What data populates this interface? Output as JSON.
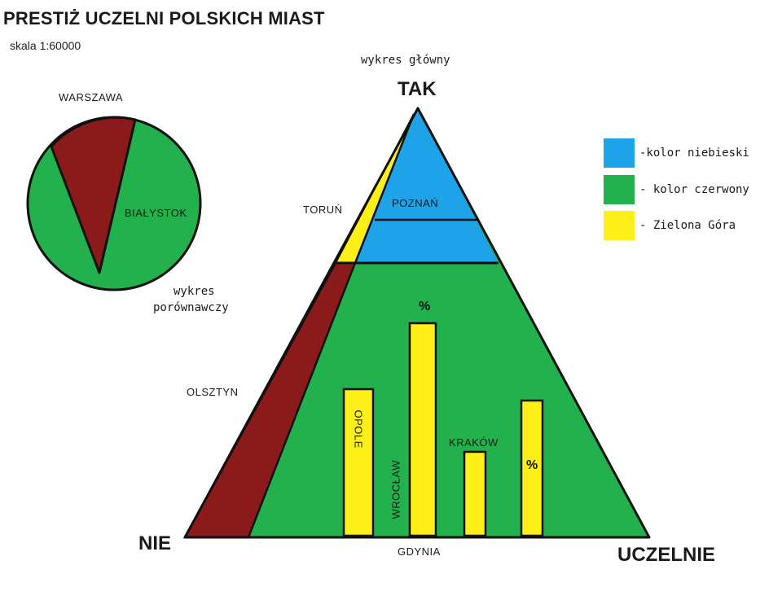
{
  "title": "PRESTIŻ UCZELNI POLSKICH MIAST",
  "scale": "skala 1:60000",
  "pie": {
    "caption_line1": "wykres",
    "caption_line2": "porównawczy",
    "labels": {
      "warszawa": "WARSZAWA",
      "bialystok": "BIAŁYSTOK"
    }
  },
  "pyramid": {
    "caption": "wykres główny",
    "apex_label": "TAK",
    "left_corner_label": "NIE",
    "right_corner_label": "UCZELNIE",
    "regions": {
      "torun": "TORUŃ",
      "poznan": "POZNAŃ",
      "olsztyn": "OLSZTYN",
      "gdynia": "GDYNIA"
    },
    "bars": {
      "opole": "OPOLE",
      "wroclaw": "WROCŁAW",
      "krakow": "KRAKÓW",
      "percent_a": "%",
      "percent_b": "%"
    }
  },
  "legend": [
    {
      "color": "#1fa3e8",
      "label": "-kolor niebieski"
    },
    {
      "color": "#22b14c",
      "label": "- kolor czerwony"
    },
    {
      "color": "#ffef19",
      "label": "- Zielona Góra"
    }
  ],
  "colors": {
    "blue": "#1fa3e8",
    "green": "#22b14c",
    "yellow": "#ffef19",
    "maroon": "#8b1a1a",
    "outline": "#111111"
  }
}
